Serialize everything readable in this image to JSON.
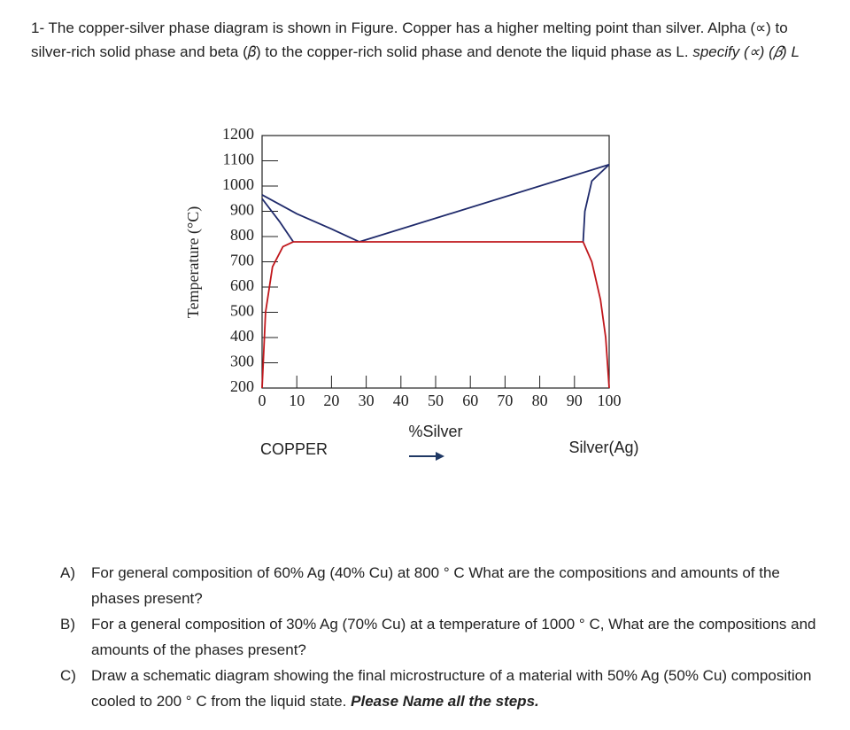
{
  "intro": {
    "text": "1- The copper-silver phase diagram is shown in Figure. Copper has a higher melting point than silver. Alpha (∝) to silver-rich solid phase and beta (𝛽) to the copper-rich solid phase and denote the liquid phase as L.",
    "emphasis": "specify (∝) (𝛽) L"
  },
  "chart_data": {
    "type": "line",
    "ylabel": "Temperature (°C)",
    "xlabel": "%Silver",
    "xlim": [
      0,
      100
    ],
    "ylim": [
      200,
      1200
    ],
    "xticks": [
      0,
      10,
      20,
      30,
      40,
      50,
      60,
      70,
      80,
      90,
      100
    ],
    "yticks": [
      200,
      300,
      400,
      500,
      600,
      700,
      800,
      900,
      1000,
      1100,
      1200
    ],
    "series": [
      {
        "color": "#1f2a6b",
        "x": [
          0,
          10,
          20,
          28
        ],
        "values": [
          965,
          890,
          830,
          779
        ]
      },
      {
        "color": "#1f2a6b",
        "x": [
          0,
          5,
          9
        ],
        "values": [
          950,
          860,
          779
        ]
      },
      {
        "color": "#1f2a6b",
        "x": [
          28,
          100
        ],
        "values": [
          779,
          1085
        ]
      },
      {
        "color": "#1f2a6b",
        "x": [
          92.5,
          93,
          95,
          100
        ],
        "values": [
          779,
          900,
          1020,
          1085
        ]
      },
      {
        "color": "#c0171c",
        "x": [
          9,
          92.5
        ],
        "values": [
          779,
          779
        ]
      },
      {
        "color": "#c0171c",
        "x": [
          0,
          1,
          3,
          6,
          9
        ],
        "values": [
          200,
          500,
          680,
          760,
          779
        ]
      },
      {
        "color": "#c0171c",
        "x": [
          92.5,
          95,
          97.5,
          99,
          100
        ],
        "values": [
          779,
          700,
          550,
          400,
          200
        ]
      }
    ]
  },
  "labels": {
    "left": "COPPER",
    "right": "Silver(Ag)"
  },
  "questions": [
    {
      "label": "A)",
      "text": "For general composition of 60% Ag (40% Cu) at 800 ° C What are the compositions and amounts of the phases present?"
    },
    {
      "label": "B)",
      "text": "For a general composition of 30% Ag (70% Cu) at a temperature of 1000 ° C, What are the compositions and amounts of the phases present?"
    },
    {
      "label": "C)",
      "text": "Draw a schematic diagram showing the final microstructure of a material with 50% Ag (50% Cu) composition cooled to 200 ° C from the liquid state.",
      "emphasis": "Please Name all the steps."
    }
  ]
}
